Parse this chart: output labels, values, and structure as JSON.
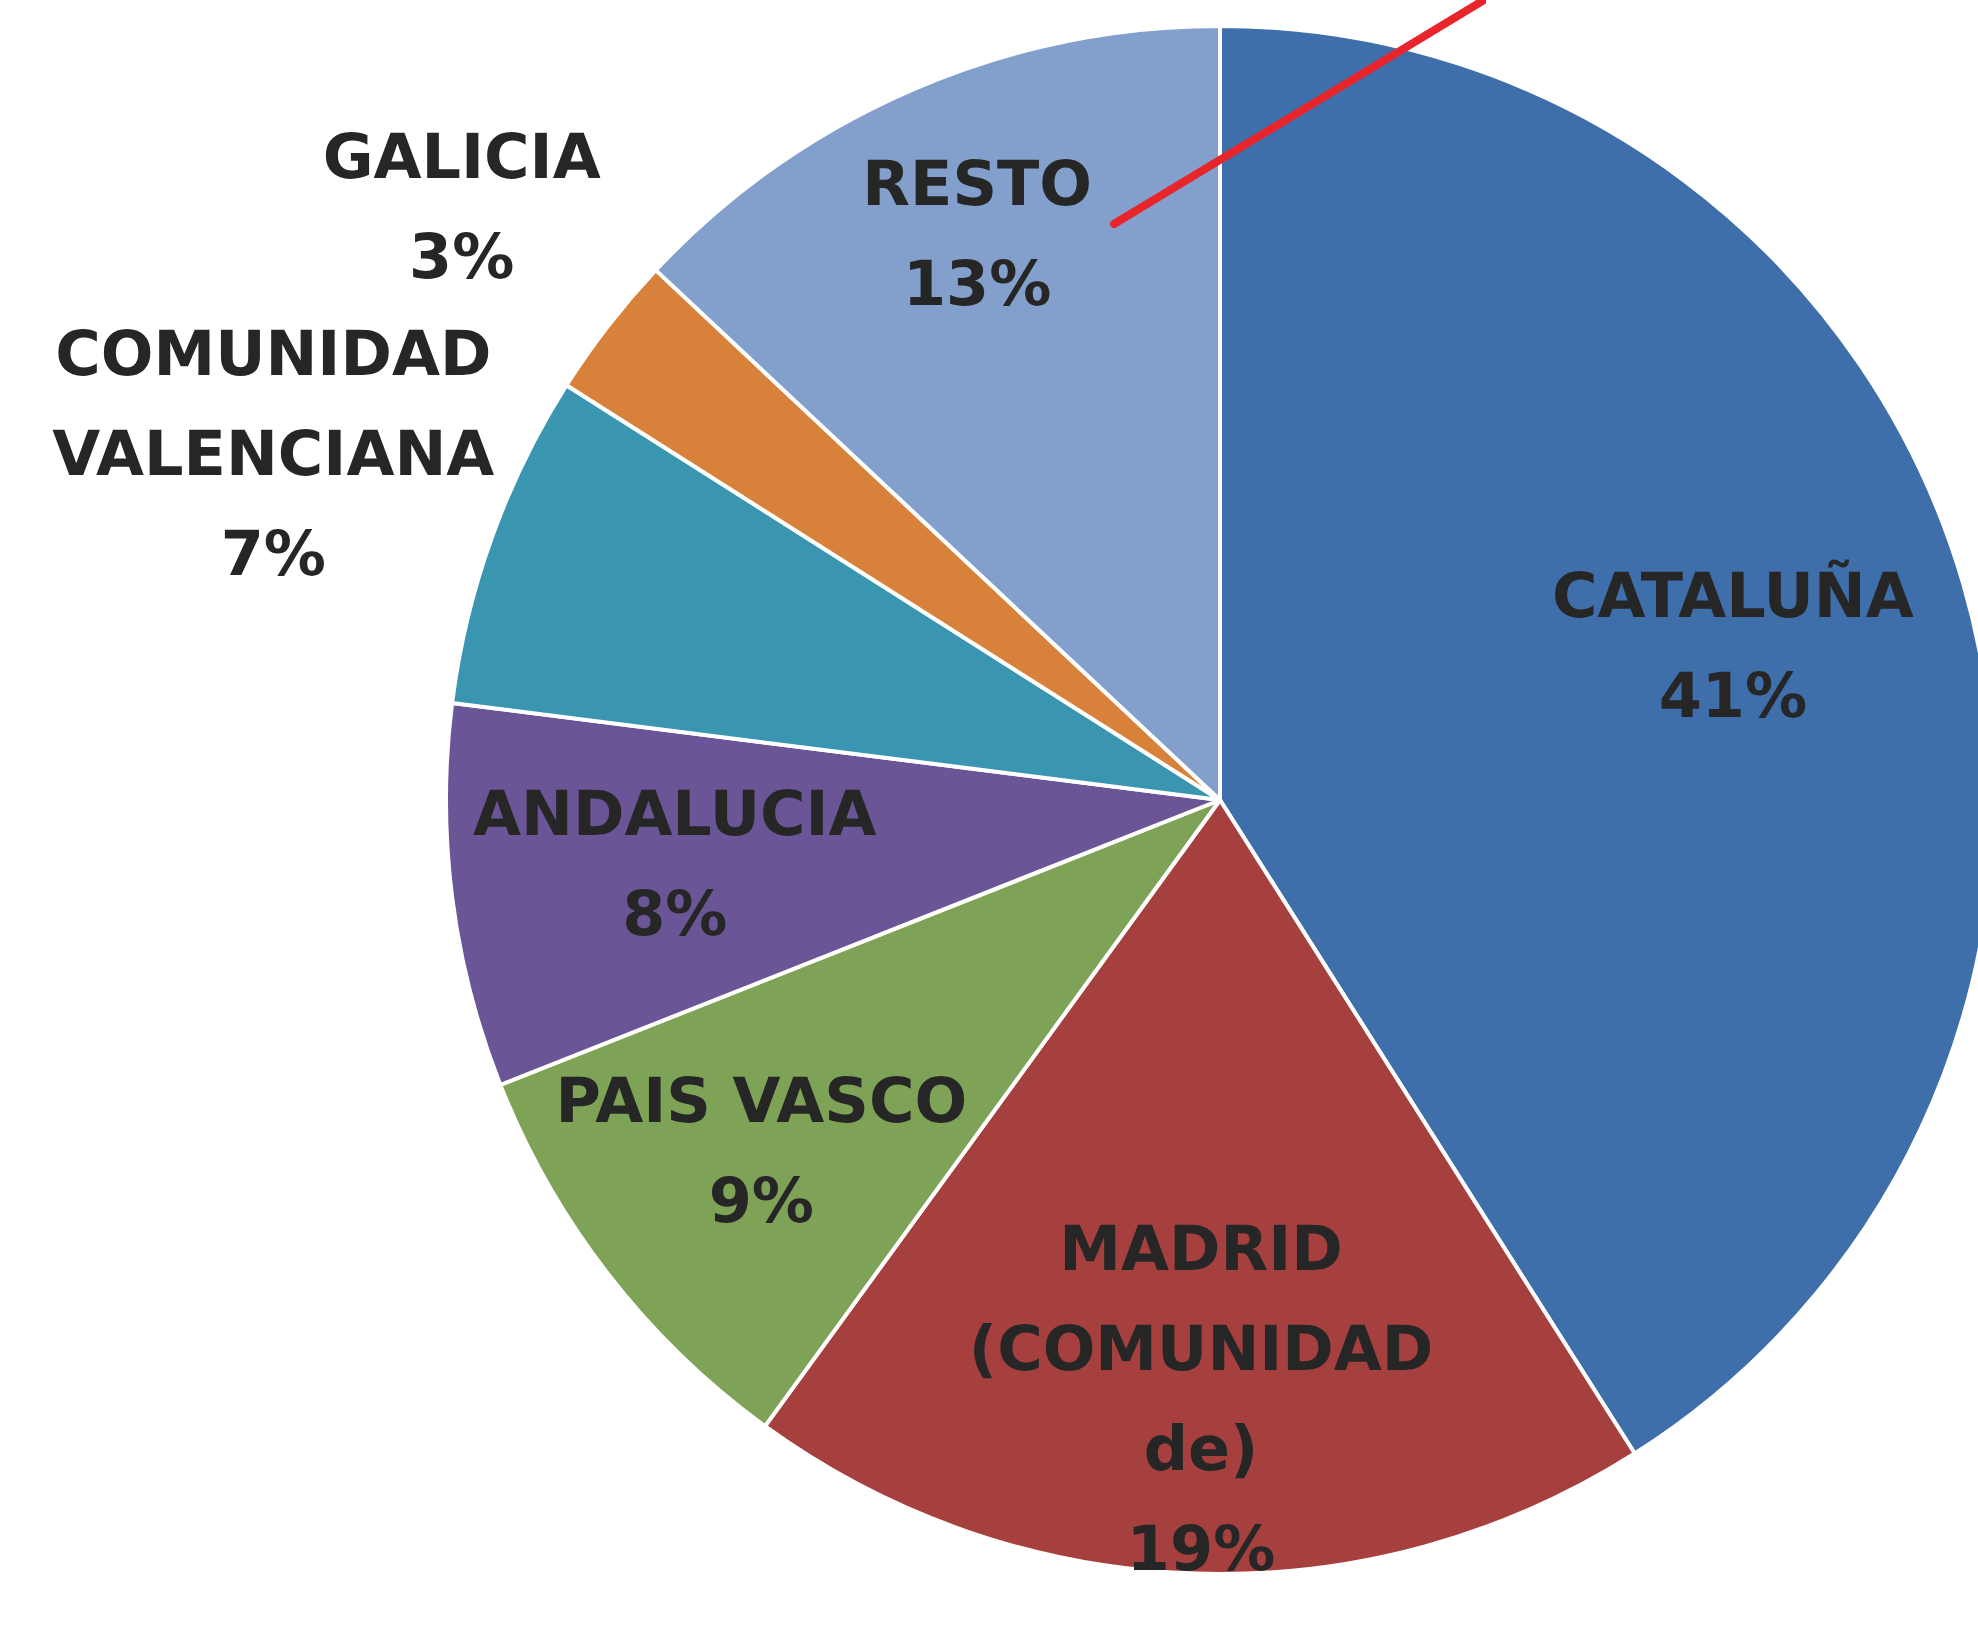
{
  "chart_data": {
    "type": "pie",
    "categories": [
      "CATALUÑA",
      "MADRID (COMUNIDAD de)",
      "PAIS VASCO",
      "ANDALUCIA",
      "COMUNIDAD VALENCIANA",
      "GALICIA",
      "RESTO"
    ],
    "values": [
      41,
      19,
      9,
      8,
      7,
      3,
      13
    ],
    "value_labels": [
      "41%",
      "19%",
      "9%",
      "8%",
      "7%",
      "3%",
      "13%"
    ],
    "colors": [
      "#3f6faa",
      "#a5403e",
      "#7fa356",
      "#6a5596",
      "#3a96b0",
      "#d8813b",
      "#83a0cc"
    ],
    "legend": false
  }
}
